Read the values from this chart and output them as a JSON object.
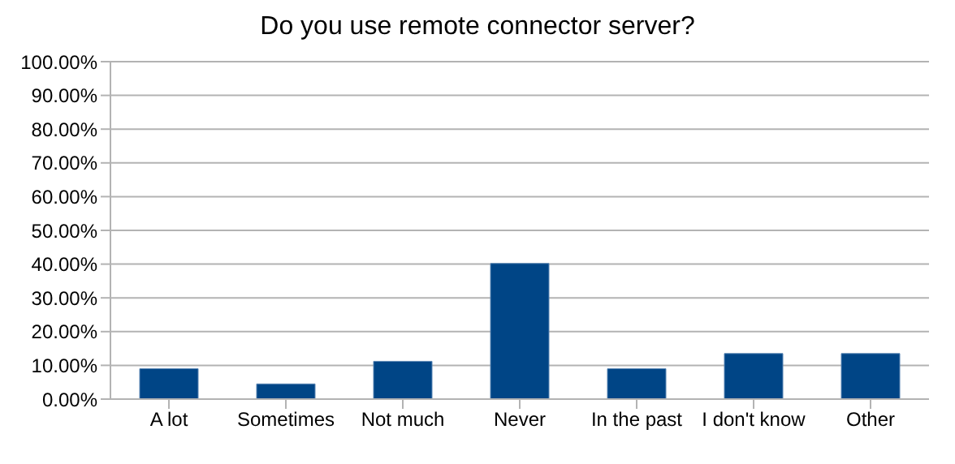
{
  "chart_data": {
    "type": "bar",
    "title": "Do you use remote connector server?",
    "categories": [
      "A lot",
      "Sometimes",
      "Not much",
      "Never",
      "In the past",
      "I don't know",
      "Other"
    ],
    "values": [
      9.0,
      4.5,
      11.2,
      40.2,
      9.0,
      13.5,
      13.5
    ],
    "color": "#004586",
    "ylim": [
      0,
      100
    ],
    "yticks": [
      {
        "value": 0,
        "label": "0.00%"
      },
      {
        "value": 10,
        "label": "10.00%"
      },
      {
        "value": 20,
        "label": "20.00%"
      },
      {
        "value": 30,
        "label": "30.00%"
      },
      {
        "value": 40,
        "label": "40.00%"
      },
      {
        "value": 50,
        "label": "50.00%"
      },
      {
        "value": 60,
        "label": "60.00%"
      },
      {
        "value": 70,
        "label": "70.00%"
      },
      {
        "value": 80,
        "label": "80.00%"
      },
      {
        "value": 90,
        "label": "90.00%"
      },
      {
        "value": 100,
        "label": "100.00%"
      }
    ],
    "grid": "y",
    "legend": false
  }
}
